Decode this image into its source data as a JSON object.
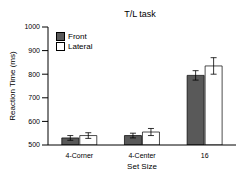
{
  "chart_data": {
    "type": "bar",
    "title": "T/L task",
    "x_label": "Set Size",
    "y_label": "Reaction Time (ms)",
    "categories": [
      "4-Corner",
      "4-Center",
      "16"
    ],
    "series": [
      {
        "name": "Front",
        "color": "#595959",
        "values": [
          530,
          540,
          795
        ],
        "errors": [
          10,
          10,
          20
        ]
      },
      {
        "name": "Lateral",
        "color": "#ffffff",
        "values": [
          540,
          555,
          835
        ],
        "errors": [
          12,
          15,
          35
        ]
      }
    ],
    "ylim": [
      500,
      1000
    ],
    "yticks": [
      500,
      600,
      700,
      800,
      900,
      1000
    ],
    "grid": false,
    "legend": "upper left"
  }
}
